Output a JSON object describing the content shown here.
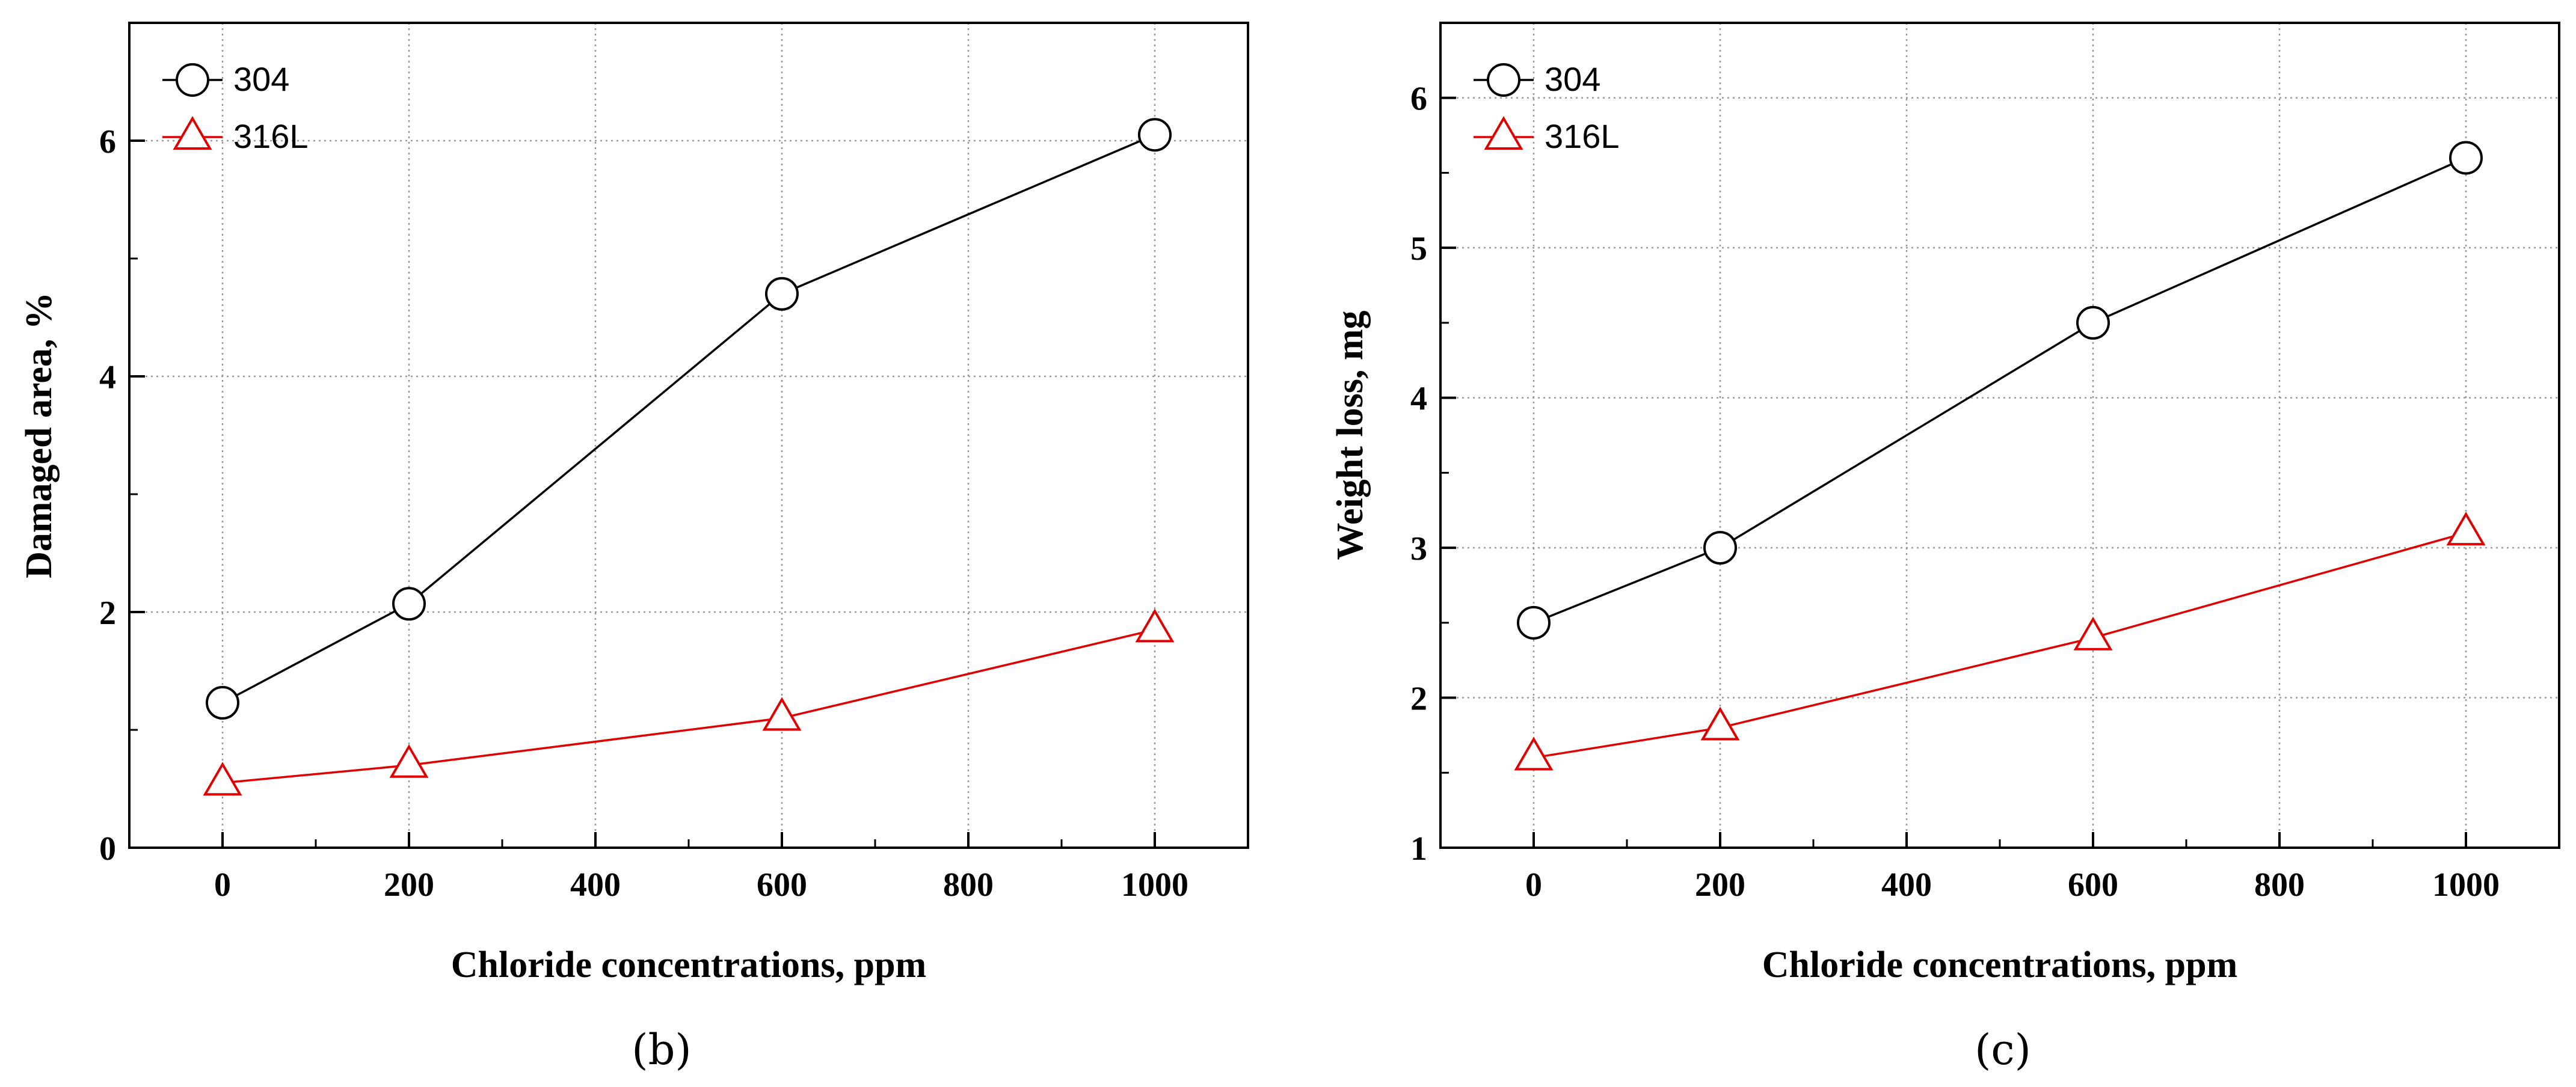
{
  "chart_data": [
    {
      "type": "line",
      "panel_label": "(b)",
      "xlabel": "Chloride concentrations, ppm",
      "ylabel": "Damaged area, %",
      "xlim": [
        -100,
        1100
      ],
      "ylim": [
        0,
        7
      ],
      "xticks": [
        0,
        200,
        400,
        600,
        800,
        1000
      ],
      "xtick_labels": [
        "0",
        "200",
        "400",
        "600",
        "800",
        "1000"
      ],
      "yticks": [
        0,
        2,
        4,
        6
      ],
      "ytick_labels": [
        "0",
        "2",
        "4",
        "6"
      ],
      "grid": true,
      "legend_position": "top-left",
      "series": [
        {
          "name": "304",
          "marker": "circle",
          "color": "#000000",
          "x": [
            0,
            200,
            600,
            1000
          ],
          "y": [
            1.23,
            2.07,
            4.7,
            6.05
          ]
        },
        {
          "name": "316L",
          "marker": "triangle",
          "color": "#e00000",
          "x": [
            0,
            200,
            600,
            1000
          ],
          "y": [
            0.55,
            0.7,
            1.1,
            1.85
          ]
        }
      ]
    },
    {
      "type": "line",
      "panel_label": "(c)",
      "xlabel": "Chloride concentrations, ppm",
      "ylabel": "Weight loss, mg",
      "xlim": [
        -100,
        1100
      ],
      "ylim": [
        1,
        6.5
      ],
      "xticks": [
        0,
        200,
        400,
        600,
        800,
        1000
      ],
      "xtick_labels": [
        "0",
        "200",
        "400",
        "600",
        "800",
        "1000"
      ],
      "yticks": [
        1,
        2,
        3,
        4,
        5,
        6
      ],
      "ytick_labels": [
        "1",
        "2",
        "3",
        "4",
        "5",
        "6"
      ],
      "grid": true,
      "legend_position": "top-left",
      "series": [
        {
          "name": "304",
          "marker": "circle",
          "color": "#000000",
          "x": [
            0,
            200,
            600,
            1000
          ],
          "y": [
            2.5,
            3.0,
            4.5,
            5.6
          ]
        },
        {
          "name": "316L",
          "marker": "triangle",
          "color": "#e00000",
          "x": [
            0,
            200,
            600,
            1000
          ],
          "y": [
            1.6,
            1.8,
            2.4,
            3.1
          ]
        }
      ]
    }
  ]
}
